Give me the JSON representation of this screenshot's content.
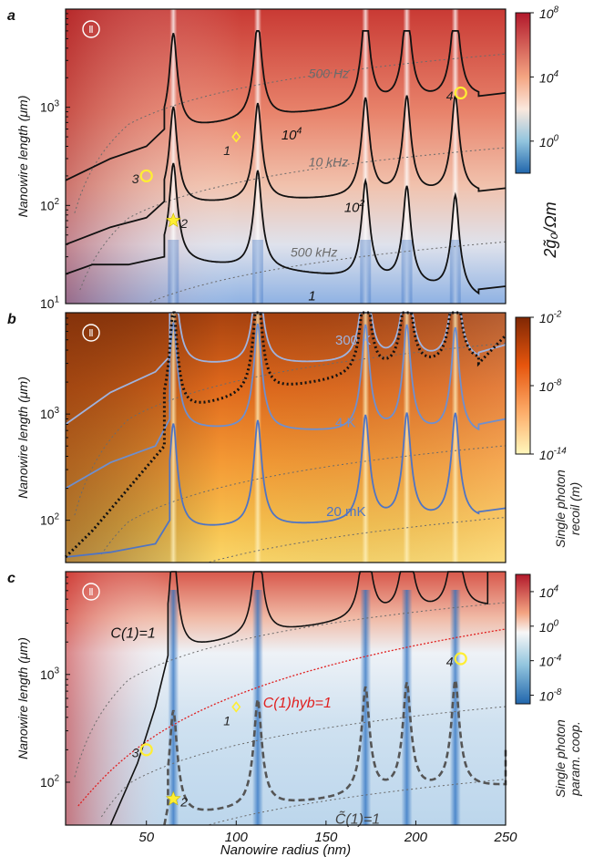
{
  "colors": {
    "red": "#c0392b",
    "mid_a": "#f3d9c8",
    "blue": "#2e6fbf",
    "brown": "#8b3a0e",
    "orange": "#f08a24",
    "cream": "#fff5c8",
    "marker_yellow": "#ffee33",
    "cyan_line": "#8fa8d8",
    "red_dotted": "#e02020"
  },
  "chart_data": [
    {
      "panel": "a",
      "type": "heatmap",
      "badge": "Ⅱ",
      "xlim": [
        5,
        250
      ],
      "ylim": [
        10,
        10000
      ],
      "y_scale": "log",
      "ylabel": "Nanowire length (μm)",
      "yticks": [
        {
          "value": 10,
          "base": "10",
          "exp": "1"
        },
        {
          "value": 100,
          "base": "10",
          "exp": "2"
        },
        {
          "value": 1000,
          "base": "10",
          "exp": "3"
        }
      ],
      "colorbar": {
        "label": "2g̃₀/Ωm",
        "scale": "log",
        "range_exp": [
          -2,
          8
        ],
        "ticks": [
          {
            "base": "10",
            "exp": "8",
            "pos": 8
          },
          {
            "base": "10",
            "exp": "4",
            "pos": 4
          },
          {
            "base": "10",
            "exp": "0",
            "pos": 0
          }
        ]
      },
      "contours": [
        {
          "label_base": "10",
          "label_exp": "4",
          "label_at": [
            115,
            520
          ],
          "base": [
            [
              5,
              180
            ],
            [
              30,
              300
            ],
            [
              50,
              400
            ],
            [
              60,
              600
            ]
          ],
          "tail": [
            [
              235,
              1300
            ],
            [
              250,
              1400
            ]
          ]
        },
        {
          "label_base": "10",
          "label_exp": "2",
          "label_at": [
            150,
            95
          ],
          "base": [
            [
              5,
              40
            ],
            [
              30,
              60
            ],
            [
              50,
              75
            ],
            [
              60,
              110
            ]
          ],
          "tail": [
            [
              235,
              140
            ],
            [
              250,
              150
            ]
          ]
        },
        {
          "label_base": "1",
          "label_exp": "",
          "label_at": [
            130,
            12
          ],
          "base": [
            [
              5,
              20
            ],
            [
              20,
              25
            ],
            [
              40,
              25
            ],
            [
              60,
              30
            ]
          ],
          "tail": [
            [
              235,
              14
            ],
            [
              250,
              15
            ]
          ]
        }
      ],
      "frequency_lines": [
        {
          "label": "500 Hz",
          "label_at": [
            120,
            2000
          ]
        },
        {
          "label": "10 kHz",
          "label_at": [
            120,
            250
          ]
        },
        {
          "label": "500 kHz",
          "label_at": [
            110,
            30
          ]
        }
      ],
      "markers": [
        {
          "id": "1",
          "shape": "diamond",
          "x": 100,
          "y": 500
        },
        {
          "id": "2",
          "shape": "star",
          "x": 65,
          "y": 70
        },
        {
          "id": "3",
          "shape": "circle",
          "x": 50,
          "y": 200
        },
        {
          "id": "4",
          "shape": "circle",
          "x": 225,
          "y": 1400
        }
      ]
    },
    {
      "panel": "b",
      "type": "heatmap",
      "badge": "Ⅱ",
      "xlim": [
        5,
        250
      ],
      "ylim": [
        40,
        9000
      ],
      "y_scale": "log",
      "ylabel": "Nanowire length (μm)",
      "yticks": [
        {
          "value": 100,
          "base": "10",
          "exp": "2"
        },
        {
          "value": 1000,
          "base": "10",
          "exp": "3"
        }
      ],
      "colorbar": {
        "label": "Single photon recoil (m)",
        "scale": "log",
        "range_exp": [
          -14,
          -2
        ],
        "ticks": [
          {
            "base": "10",
            "exp": "-2",
            "pos": -2
          },
          {
            "base": "10",
            "exp": "-8",
            "pos": -8
          },
          {
            "base": "10",
            "exp": "-14",
            "pos": -14
          }
        ]
      },
      "contours": [
        {
          "label": "300 K",
          "color": "#9fb3df",
          "label_at": [
            145,
            4500
          ],
          "base": [
            [
              5,
              800
            ],
            [
              30,
              1600
            ],
            [
              55,
              2500
            ],
            [
              63,
              3500
            ]
          ],
          "tail": [
            [
              235,
              3800
            ],
            [
              250,
              4500
            ]
          ]
        },
        {
          "label": "4 K",
          "color": "#6e8fcf",
          "label_at": [
            145,
            750
          ],
          "base": [
            [
              5,
              200
            ],
            [
              30,
              350
            ],
            [
              55,
              500
            ],
            [
              63,
              900
            ]
          ],
          "tail": [
            [
              235,
              800
            ],
            [
              250,
              900
            ]
          ]
        },
        {
          "label": "20 mK",
          "color": "#4f74c4",
          "label_at": [
            140,
            110
          ],
          "base": [
            [
              5,
              45
            ],
            [
              30,
              50
            ],
            [
              55,
              60
            ],
            [
              63,
              100
            ]
          ],
          "tail": [
            [
              235,
              120
            ],
            [
              250,
              130
            ]
          ]
        }
      ],
      "dotted_curve": {
        "base": [
          [
            5,
            45
          ],
          [
            20,
            80
          ],
          [
            40,
            200
          ],
          [
            60,
            500
          ]
        ],
        "tail": [
          [
            235,
            3000
          ],
          [
            250,
            5500
          ]
        ]
      }
    },
    {
      "panel": "c",
      "type": "heatmap",
      "badge": "Ⅱ",
      "xlim": [
        5,
        250
      ],
      "ylim": [
        40,
        9000
      ],
      "y_scale": "log",
      "xlabel": "Nanowire radius (nm)",
      "ylabel": "Nanowire length (μm)",
      "xticks": [
        50,
        100,
        150,
        200,
        250
      ],
      "yticks": [
        {
          "value": 100,
          "base": "10",
          "exp": "2"
        },
        {
          "value": 1000,
          "base": "10",
          "exp": "3"
        }
      ],
      "colorbar": {
        "label": "Single photon param. coop.",
        "scale": "log",
        "range_exp": [
          -9,
          6
        ],
        "ticks": [
          {
            "base": "10",
            "exp": "4",
            "pos": 4
          },
          {
            "base": "10",
            "exp": "0",
            "pos": 0
          },
          {
            "base": "10",
            "exp": "-4",
            "pos": -4
          },
          {
            "base": "10",
            "exp": "-8",
            "pos": -8
          }
        ]
      },
      "contours": [
        {
          "label": "C(1)=1",
          "label_at": [
            25,
            2200
          ],
          "style": "solid"
        },
        {
          "label": "C(1)hyb=1",
          "label_at": [
            120,
            700
          ],
          "style": "red-dotted"
        },
        {
          "label": "C̃(1)=1",
          "label_at": [
            150,
            48
          ],
          "style": "dashed"
        }
      ],
      "markers": [
        {
          "id": "1",
          "shape": "diamond",
          "x": 100,
          "y": 500
        },
        {
          "id": "2",
          "shape": "star",
          "x": 65,
          "y": 70
        },
        {
          "id": "3",
          "shape": "circle",
          "x": 50,
          "y": 200
        },
        {
          "id": "4",
          "shape": "circle",
          "x": 225,
          "y": 1400
        }
      ]
    }
  ],
  "panel_letters": [
    "a",
    "b",
    "c"
  ]
}
